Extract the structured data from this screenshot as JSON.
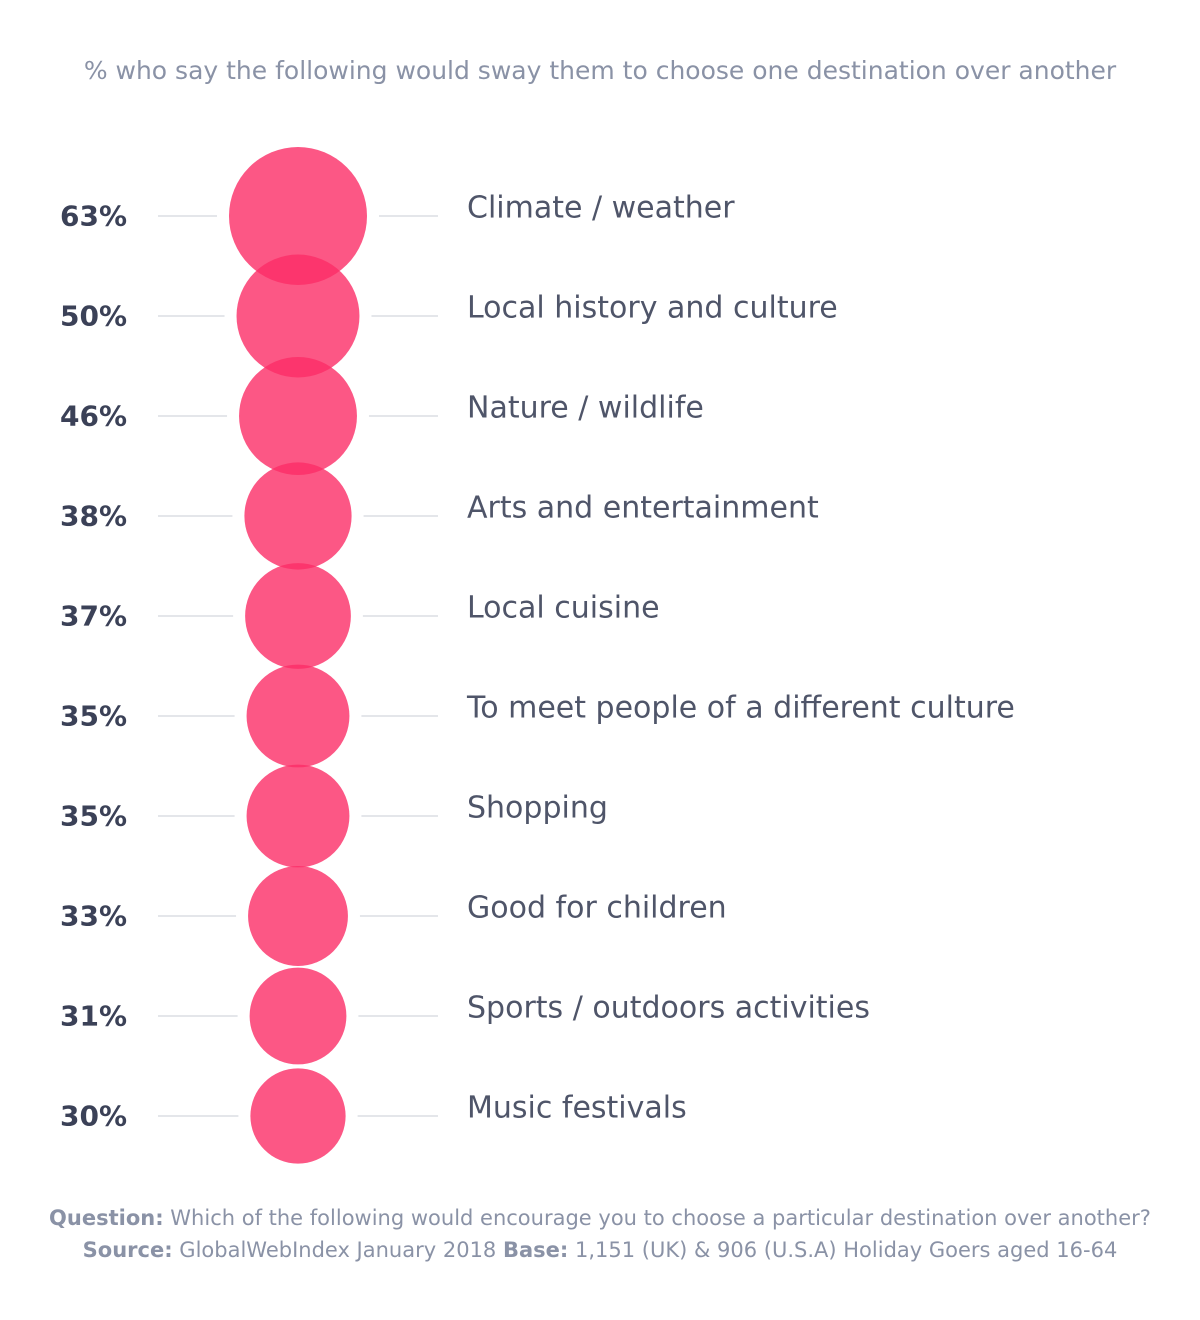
{
  "chart_data": {
    "type": "bubble",
    "subtitle": "% who say the following would sway them to choose one destination over another",
    "categories": [
      "Climate / weather",
      "Local history and culture",
      "Nature / wildlife",
      "Arts and entertainment",
      "Local cuisine",
      "To meet people of a different culture",
      "Shopping",
      "Good for children",
      "Sports / outdoors activities",
      "Music festivals"
    ],
    "values": [
      63,
      50,
      46,
      38,
      37,
      35,
      35,
      33,
      31,
      30
    ],
    "value_labels": [
      "63%",
      "50%",
      "46%",
      "38%",
      "37%",
      "35%",
      "35%",
      "33%",
      "31%",
      "30%"
    ],
    "unit": "%",
    "bubble_color": "#fb2d66"
  },
  "footer": {
    "question_label": "Question:",
    "question_text": " Which of the following would encourage you to choose a particular destination over another?",
    "source_label": "Source:",
    "source_text": " GlobalWebIndex January 2018 ",
    "base_label": "Base:",
    "base_text": " 1,151 (UK) & 906 (U.S.A) Holiday Goers aged 16-64"
  }
}
